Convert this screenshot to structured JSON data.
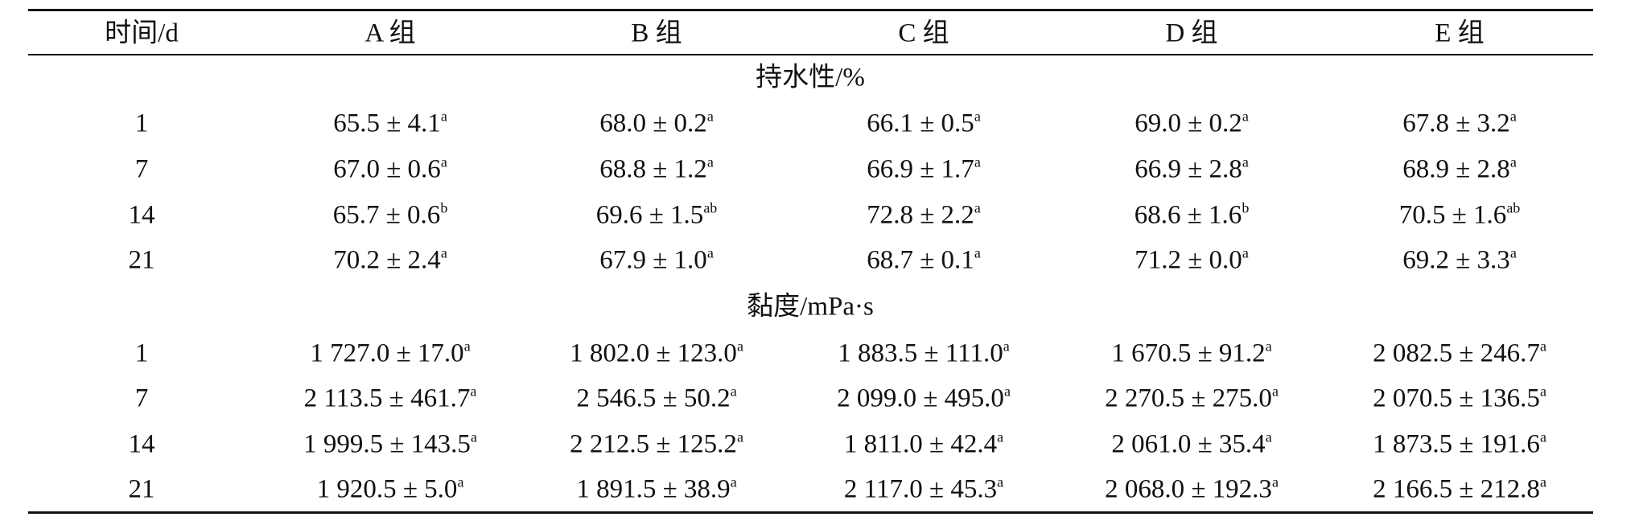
{
  "table": {
    "header": [
      "时间/d",
      "A 组",
      "B 组",
      "C 组",
      "D 组",
      "E 组"
    ],
    "sections": [
      {
        "title": "持水性/%",
        "rows": [
          [
            "1",
            {
              "text": "65.5 ± 4.1",
              "sup": "a"
            },
            {
              "text": "68.0 ± 0.2",
              "sup": "a"
            },
            {
              "text": "66.1 ± 0.5",
              "sup": "a"
            },
            {
              "text": "69.0 ± 0.2",
              "sup": "a"
            },
            {
              "text": "67.8 ± 3.2",
              "sup": "a"
            }
          ],
          [
            "7",
            {
              "text": "67.0 ± 0.6",
              "sup": "a"
            },
            {
              "text": "68.8 ± 1.2",
              "sup": "a"
            },
            {
              "text": "66.9 ± 1.7",
              "sup": "a"
            },
            {
              "text": "66.9 ± 2.8",
              "sup": "a"
            },
            {
              "text": "68.9 ± 2.8",
              "sup": "a"
            }
          ],
          [
            "14",
            {
              "text": "65.7 ± 0.6",
              "sup": "b"
            },
            {
              "text": "69.6 ± 1.5",
              "sup": "ab"
            },
            {
              "text": "72.8 ± 2.2",
              "sup": "a"
            },
            {
              "text": "68.6 ± 1.6",
              "sup": "b"
            },
            {
              "text": "70.5 ± 1.6",
              "sup": "ab"
            }
          ],
          [
            "21",
            {
              "text": "70.2 ± 2.4",
              "sup": "a"
            },
            {
              "text": "67.9 ± 1.0",
              "sup": "a"
            },
            {
              "text": "68.7 ± 0.1",
              "sup": "a"
            },
            {
              "text": "71.2 ± 0.0",
              "sup": "a"
            },
            {
              "text": "69.2 ± 3.3",
              "sup": "a"
            }
          ]
        ]
      },
      {
        "title": "黏度/mPa·s",
        "rows": [
          [
            "1",
            {
              "text": "1 727.0 ± 17.0",
              "sup": "a"
            },
            {
              "text": "1 802.0 ± 123.0",
              "sup": "a"
            },
            {
              "text": "1 883.5 ± 111.0",
              "sup": "a"
            },
            {
              "text": "1 670.5 ± 91.2",
              "sup": "a"
            },
            {
              "text": "2 082.5 ± 246.7",
              "sup": "a"
            }
          ],
          [
            "7",
            {
              "text": "2 113.5 ± 461.7",
              "sup": "a"
            },
            {
              "text": "2 546.5 ± 50.2",
              "sup": "a"
            },
            {
              "text": "2 099.0 ± 495.0",
              "sup": "a"
            },
            {
              "text": "2 270.5 ± 275.0",
              "sup": "a"
            },
            {
              "text": "2 070.5 ± 136.5",
              "sup": "a"
            }
          ],
          [
            "14",
            {
              "text": "1 999.5 ± 143.5",
              "sup": "a"
            },
            {
              "text": "2 212.5 ± 125.2",
              "sup": "a"
            },
            {
              "text": "1 811.0 ± 42.4",
              "sup": "a"
            },
            {
              "text": "2 061.0 ± 35.4",
              "sup": "a"
            },
            {
              "text": "1 873.5 ± 191.6",
              "sup": "a"
            }
          ],
          [
            "21",
            {
              "text": "1 920.5 ± 5.0",
              "sup": "a"
            },
            {
              "text": "1 891.5 ± 38.9",
              "sup": "a"
            },
            {
              "text": "2 117.0 ± 45.3",
              "sup": "a"
            },
            {
              "text": "2 068.0 ± 192.3",
              "sup": "a"
            },
            {
              "text": "2 166.5 ± 212.8",
              "sup": "a"
            }
          ]
        ]
      }
    ]
  }
}
